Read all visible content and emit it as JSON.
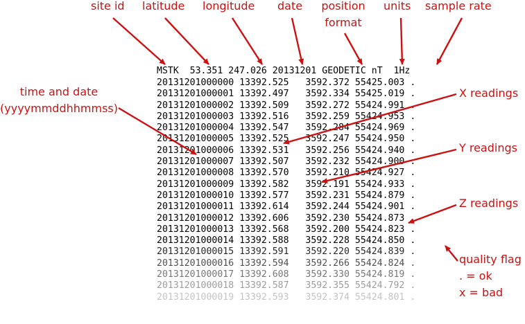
{
  "header_labels": {
    "site_id": "site id",
    "latitude": "latitude",
    "longitude": "longitude",
    "date": "date",
    "position_format_line1": "position",
    "position_format_line2": "format",
    "units": "units",
    "sample_rate": "sample rate"
  },
  "side_labels": {
    "time_and_date_line1": "time and date",
    "time_and_date_line2": "(yyyymmddhhmmss)",
    "x_readings": "X readings",
    "y_readings": "Y readings",
    "z_readings": "Z readings",
    "quality_flag": "quality flag",
    "ok_flag": ". = ok",
    "bad_flag": "x = bad"
  },
  "header_line": {
    "site_id": "MSTK",
    "latitude": "53.351",
    "longitude": "247.026",
    "date": "20131201",
    "position_format": "GEODETIC",
    "units": "nT",
    "sample_rate": "1Hz"
  },
  "rows": [
    {
      "timestamp": "20131201000000",
      "x": "13392.525",
      "y": "3592.372",
      "z": "55425.003",
      "flag": "."
    },
    {
      "timestamp": "20131201000001",
      "x": "13392.497",
      "y": "3592.334",
      "z": "55425.019",
      "flag": "."
    },
    {
      "timestamp": "20131201000002",
      "x": "13392.509",
      "y": "3592.272",
      "z": "55424.991",
      "flag": "."
    },
    {
      "timestamp": "20131201000003",
      "x": "13392.516",
      "y": "3592.259",
      "z": "55424.953",
      "flag": "."
    },
    {
      "timestamp": "20131201000004",
      "x": "13392.547",
      "y": "3592.284",
      "z": "55424.969",
      "flag": "."
    },
    {
      "timestamp": "20131201000005",
      "x": "13392.525",
      "y": "3592.247",
      "z": "55424.950",
      "flag": "."
    },
    {
      "timestamp": "20131201000006",
      "x": "13392.531",
      "y": "3592.256",
      "z": "55424.940",
      "flag": "."
    },
    {
      "timestamp": "20131201000007",
      "x": "13392.507",
      "y": "3592.232",
      "z": "55424.900",
      "flag": "."
    },
    {
      "timestamp": "20131201000008",
      "x": "13392.570",
      "y": "3592.210",
      "z": "55424.927",
      "flag": "."
    },
    {
      "timestamp": "20131201000009",
      "x": "13392.582",
      "y": "3592.191",
      "z": "55424.933",
      "flag": "."
    },
    {
      "timestamp": "20131201000010",
      "x": "13392.577",
      "y": "3592.231",
      "z": "55424.879",
      "flag": "."
    },
    {
      "timestamp": "20131201000011",
      "x": "13392.614",
      "y": "3592.244",
      "z": "55424.901",
      "flag": "."
    },
    {
      "timestamp": "20131201000012",
      "x": "13392.606",
      "y": "3592.230",
      "z": "55424.873",
      "flag": "."
    },
    {
      "timestamp": "20131201000013",
      "x": "13392.568",
      "y": "3592.200",
      "z": "55424.823",
      "flag": "."
    },
    {
      "timestamp": "20131201000014",
      "x": "13392.588",
      "y": "3592.228",
      "z": "55424.850",
      "flag": "."
    },
    {
      "timestamp": "20131201000015",
      "x": "13392.591",
      "y": "3592.220",
      "z": "55424.839",
      "flag": "."
    },
    {
      "timestamp": "20131201000016",
      "x": "13392.594",
      "y": "3592.266",
      "z": "55424.824",
      "flag": "."
    },
    {
      "timestamp": "20131201000017",
      "x": "13392.608",
      "y": "3592.330",
      "z": "55424.819",
      "flag": "."
    },
    {
      "timestamp": "20131201000018",
      "x": "13392.587",
      "y": "3592.355",
      "z": "55424.792",
      "flag": "."
    },
    {
      "timestamp": "20131201000019",
      "x": "13392.593",
      "y": "3592.374",
      "z": "55424.801",
      "flag": "."
    }
  ],
  "colors": {
    "annotation": "#cc1111",
    "text": "#000000"
  }
}
